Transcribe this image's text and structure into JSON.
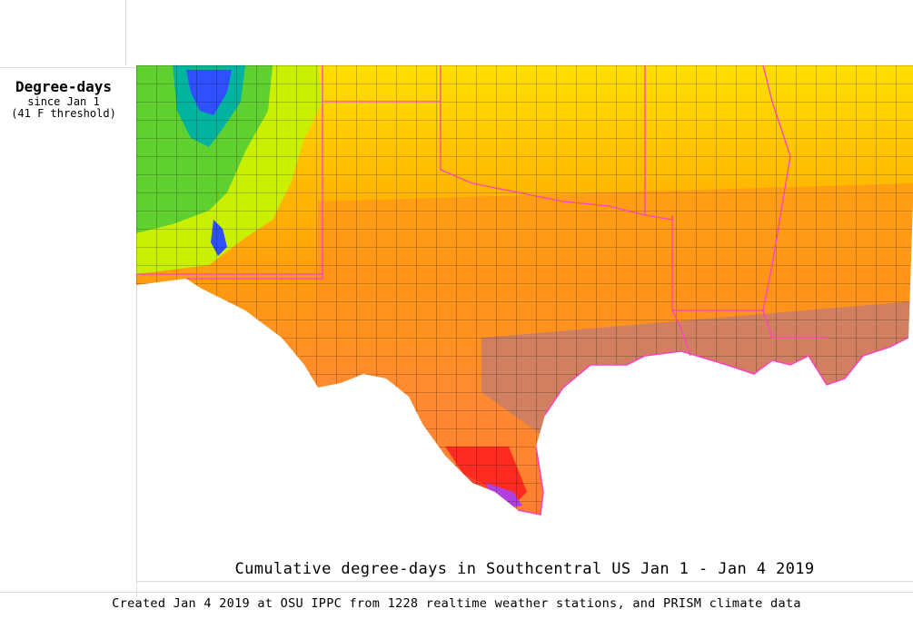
{
  "legend": {
    "title": "Degree-days",
    "subtitle_line1": "since Jan 1",
    "subtitle_line2": "(41 F threshold)"
  },
  "map": {
    "title": "Cumulative degree-days in Southcentral US Jan 1 - Jan 4 2019",
    "colors": {
      "coldest": "#3050ff",
      "cold": "#00c060",
      "cool": "#c0f000",
      "mild": "#ffe000",
      "warm": "#ffa000",
      "warmer": "#ff8020",
      "hot_brown": "#d08060",
      "hot_red": "#ff2020",
      "hottest_purple": "#a040ff",
      "border_state": "#ff40c0",
      "border_county": "#000000",
      "water": "#ffffff"
    }
  },
  "footer": {
    "credit": "Created Jan 4 2019 at OSU IPPC from 1228 realtime weather stations, and PRISM climate data"
  }
}
